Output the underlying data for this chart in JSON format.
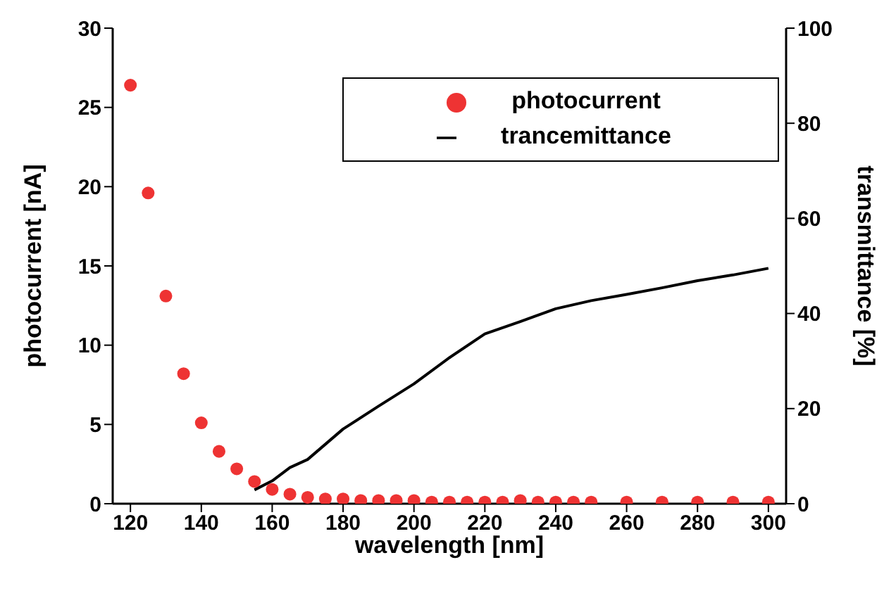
{
  "chart_data": {
    "type": "scatter",
    "xlabel": "wavelength [nm]",
    "ylabel": "photocurrent [nA]",
    "y2label": "transmittance [%]",
    "xlim": [
      115,
      305
    ],
    "xticks": [
      120,
      140,
      160,
      180,
      200,
      220,
      240,
      260,
      280,
      300
    ],
    "ylim": [
      0,
      30
    ],
    "yticks": [
      0,
      5,
      10,
      15,
      20,
      25,
      30
    ],
    "y2lim": [
      0,
      100
    ],
    "y2ticks": [
      0,
      20,
      40,
      60,
      80,
      100
    ],
    "grid": false,
    "legend": "top right",
    "series": [
      {
        "name": "photocurrent",
        "marker": "circle",
        "color": "#ee3333",
        "x": [
          120,
          125,
          130,
          135,
          140,
          145,
          150,
          155,
          160,
          165,
          170,
          175,
          180,
          185,
          190,
          195,
          200,
          205,
          210,
          215,
          220,
          225,
          230,
          235,
          240,
          245,
          250,
          260,
          270,
          280,
          290,
          300
        ],
        "values": [
          26.4,
          19.6,
          13.1,
          8.2,
          5.1,
          3.3,
          2.2,
          1.4,
          0.9,
          0.6,
          0.4,
          0.3,
          0.3,
          0.2,
          0.2,
          0.2,
          0.2,
          0.1,
          0.1,
          0.1,
          0.1,
          0.1,
          0.2,
          0.1,
          0.1,
          0.1,
          0.1,
          0.1,
          0.1,
          0.1,
          0.1,
          0.1
        ]
      },
      {
        "name": "trancemittance",
        "type": "line",
        "axis": "y2",
        "marker": "none",
        "line_style": "solid",
        "color": "#000000",
        "x": [
          155,
          160,
          165,
          170,
          180,
          190,
          200,
          210,
          220,
          230,
          240,
          250,
          260,
          270,
          280,
          290,
          300
        ],
        "values": [
          2.9,
          4.8,
          7.6,
          9.3,
          15.7,
          20.5,
          25.2,
          30.7,
          35.7,
          38.3,
          41,
          42.7,
          44,
          45.4,
          46.9,
          48.1,
          49.5
        ]
      }
    ]
  }
}
